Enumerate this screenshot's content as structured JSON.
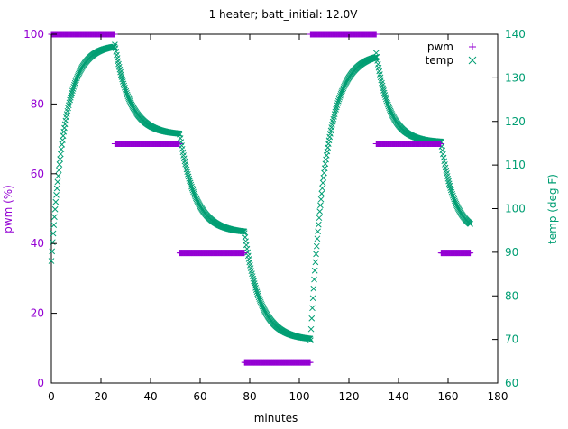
{
  "chart_data": {
    "type": "scatter",
    "title": "1 heater; batt_initial: 12.0V",
    "xlabel": "minutes",
    "ylabel": "pwm (%)",
    "y2label": "temp (deg F)",
    "xlim": [
      0,
      180
    ],
    "ylim": [
      0,
      100
    ],
    "y2lim": [
      60,
      140
    ],
    "xticks": [
      0,
      20,
      40,
      60,
      80,
      100,
      120,
      140,
      160,
      180
    ],
    "yticks": [
      0,
      20,
      40,
      60,
      80,
      100
    ],
    "y2ticks": [
      60,
      70,
      80,
      90,
      100,
      110,
      120,
      130,
      140
    ],
    "legend_position": "top-right",
    "colors": {
      "pwm": "#9400d3",
      "temp": "#009e73",
      "axis": "#000000"
    },
    "series": [
      {
        "name": "pwm",
        "axis": "y1",
        "marker": "+",
        "segments": [
          {
            "x_start": 0,
            "x_end": 25.6,
            "value": 100
          },
          {
            "x_start": 25.6,
            "x_end": 51.8,
            "value": 68.6
          },
          {
            "x_start": 51.8,
            "x_end": 77.9,
            "value": 37.3
          },
          {
            "x_start": 77.9,
            "x_end": 104.5,
            "value": 5.9
          },
          {
            "x_start": 104.5,
            "x_end": 131.0,
            "value": 100
          },
          {
            "x_start": 131.0,
            "x_end": 157.2,
            "value": 68.6
          },
          {
            "x_start": 157.2,
            "x_end": 169.0,
            "value": 37.3
          }
        ]
      },
      {
        "name": "temp",
        "axis": "y2",
        "marker": "x",
        "segments": [
          {
            "x_start": 0,
            "x_end": 25.6,
            "start": 88.0,
            "target": 137.6,
            "tau": 5.5
          },
          {
            "x_start": 25.6,
            "x_end": 51.8,
            "start": 137.6,
            "target": 116.9,
            "tau": 6.2
          },
          {
            "x_start": 51.8,
            "x_end": 77.9,
            "start": 117.0,
            "target": 94.4,
            "tau": 6.3
          },
          {
            "x_start": 77.9,
            "x_end": 104.5,
            "start": 94.4,
            "target": 69.8,
            "tau": 6.3
          },
          {
            "x_start": 104.5,
            "x_end": 131.0,
            "start": 69.8,
            "target": 135.7,
            "tau": 6.3
          },
          {
            "x_start": 131.0,
            "x_end": 157.2,
            "start": 135.7,
            "target": 115.2,
            "tau": 5.5
          },
          {
            "x_start": 157.2,
            "x_end": 169.0,
            "start": 115.2,
            "target": 94.0,
            "tau": 5.5
          }
        ]
      }
    ]
  }
}
